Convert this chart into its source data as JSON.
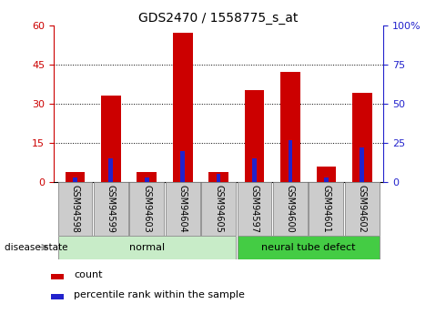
{
  "title": "GDS2470 / 1558775_s_at",
  "samples": [
    "GSM94598",
    "GSM94599",
    "GSM94603",
    "GSM94604",
    "GSM94605",
    "GSM94597",
    "GSM94600",
    "GSM94601",
    "GSM94602"
  ],
  "count_values": [
    4,
    33,
    4,
    57,
    4,
    35,
    42,
    6,
    34
  ],
  "percentile_values": [
    3,
    15,
    3,
    20,
    5,
    15,
    27,
    3,
    22
  ],
  "red_color": "#cc0000",
  "blue_color": "#2222cc",
  "left_ylim": [
    0,
    60
  ],
  "right_ylim": [
    0,
    100
  ],
  "left_yticks": [
    0,
    15,
    30,
    45,
    60
  ],
  "right_yticks": [
    0,
    25,
    50,
    75,
    100
  ],
  "right_yticklabels": [
    "0",
    "25",
    "50",
    "75",
    "100%"
  ],
  "normal_group": [
    0,
    1,
    2,
    3,
    4
  ],
  "defect_group": [
    5,
    6,
    7,
    8
  ],
  "normal_label": "normal",
  "defect_label": "neural tube defect",
  "disease_state_label": "disease state",
  "legend_count": "count",
  "legend_percentile": "percentile rank within the sample",
  "normal_bg": "#c8ecc8",
  "defect_bg": "#44cc44",
  "tick_bg": "#cccccc",
  "title_fontsize": 10,
  "axis_fontsize": 8,
  "tick_fontsize": 7
}
